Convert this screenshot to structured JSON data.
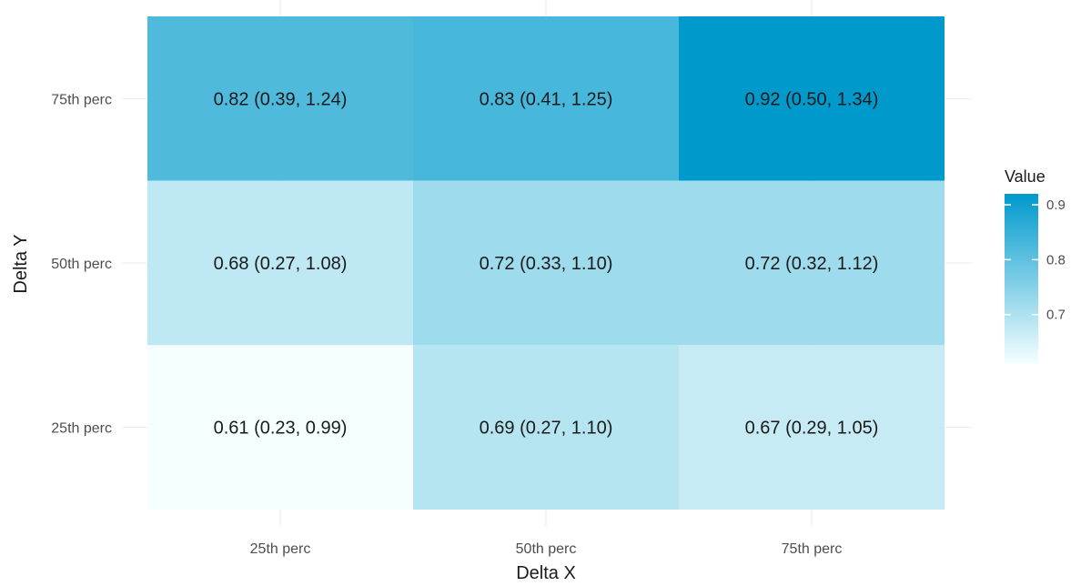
{
  "chart_data": {
    "type": "heatmap",
    "x_categories": [
      "25th perc",
      "50th perc",
      "75th perc"
    ],
    "y_categories": [
      "25th perc",
      "50th perc",
      "75th perc"
    ],
    "xlabel": "Delta X",
    "ylabel": "Delta Y",
    "cells": [
      {
        "x": "25th perc",
        "y": "75th perc",
        "value": 0.82,
        "label": "0.82 (0.39, 1.24)"
      },
      {
        "x": "50th perc",
        "y": "75th perc",
        "value": 0.83,
        "label": "0.83 (0.41, 1.25)"
      },
      {
        "x": "75th perc",
        "y": "75th perc",
        "value": 0.92,
        "label": "0.92 (0.50, 1.34)"
      },
      {
        "x": "25th perc",
        "y": "50th perc",
        "value": 0.68,
        "label": "0.68 (0.27, 1.08)"
      },
      {
        "x": "50th perc",
        "y": "50th perc",
        "value": 0.72,
        "label": "0.72 (0.33, 1.10)"
      },
      {
        "x": "75th perc",
        "y": "50th perc",
        "value": 0.72,
        "label": "0.72 (0.32, 1.12)"
      },
      {
        "x": "25th perc",
        "y": "25th perc",
        "value": 0.61,
        "label": "0.61 (0.23, 0.99)"
      },
      {
        "x": "50th perc",
        "y": "25th perc",
        "value": 0.69,
        "label": "0.69 (0.27, 1.10)"
      },
      {
        "x": "75th perc",
        "y": "25th perc",
        "value": 0.67,
        "label": "0.67 (0.29, 1.05)"
      }
    ],
    "legend": {
      "title": "Value",
      "ticks": [
        0.7,
        0.8,
        0.9
      ],
      "tick_labels": [
        "0.7",
        "0.8",
        "0.9"
      ],
      "range": [
        0.61,
        0.92
      ],
      "color_low": "#f5ffff",
      "color_high": "#0099cc",
      "placement": "right"
    },
    "grid": true
  }
}
